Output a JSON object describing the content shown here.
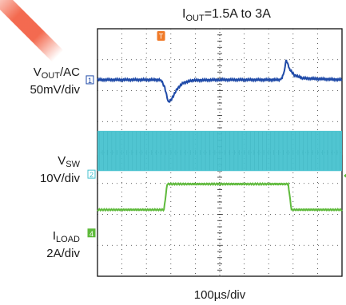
{
  "chart_data": {
    "type": "line",
    "title_main": "I",
    "title_sub": "OUT",
    "title_rest": "=1.5A to 3A",
    "xlabel": "100µs/div",
    "divisions": {
      "x": 10,
      "y": 8
    },
    "series": [
      {
        "name": "VOUT/AC",
        "label_main": "V",
        "label_sub": "OUT",
        "label_rest": "/AC",
        "scale": "50mV/div",
        "marker": "1",
        "color": "#1f4aa8",
        "level_div": 6.35,
        "points": [
          [
            0,
            6.35
          ],
          [
            2.6,
            6.35
          ],
          [
            2.75,
            6.1
          ],
          [
            2.9,
            5.62
          ],
          [
            3.05,
            5.75
          ],
          [
            3.25,
            6.05
          ],
          [
            3.5,
            6.25
          ],
          [
            3.9,
            6.33
          ],
          [
            5.0,
            6.35
          ],
          [
            7.5,
            6.35
          ],
          [
            7.62,
            6.55
          ],
          [
            7.72,
            7.0
          ],
          [
            7.85,
            6.7
          ],
          [
            8.05,
            6.5
          ],
          [
            8.4,
            6.4
          ],
          [
            10,
            6.35
          ]
        ]
      },
      {
        "name": "VSW",
        "label_main": "V",
        "label_sub": "SW",
        "label_rest": "",
        "scale": "10V/div",
        "marker": "2",
        "color": "#47c2cf",
        "band_div": [
          3.4,
          4.7
        ]
      },
      {
        "name": "ILOAD",
        "label_main": "I",
        "label_sub": "LOAD",
        "label_rest": "",
        "scale": "2A/div",
        "marker": "4",
        "color": "#5fba3c",
        "points": [
          [
            0,
            2.15
          ],
          [
            2.72,
            2.15
          ],
          [
            2.85,
            2.98
          ],
          [
            7.8,
            2.98
          ],
          [
            7.93,
            2.15
          ],
          [
            10,
            2.15
          ]
        ]
      }
    ],
    "trigger_marker": "T",
    "trigger_color": "#f07a28",
    "grid": true
  }
}
